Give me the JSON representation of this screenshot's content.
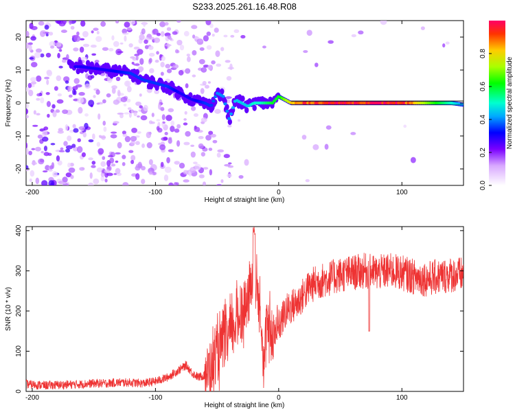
{
  "figure": {
    "title": "S233.2025.261.16.48.R08"
  },
  "chart_data": [
    {
      "type": "heatmap",
      "xlabel": "Height of straight line (km)",
      "ylabel": "Frequency (Hz)",
      "xlim": [
        -205,
        150
      ],
      "ylim": [
        -25,
        25
      ],
      "xticks": [
        -200,
        -100,
        0,
        100
      ],
      "yticks": [
        -20,
        -10,
        0,
        10,
        20
      ],
      "colorbar": {
        "label": "Normalized spectral amplitude",
        "range": [
          0,
          1
        ],
        "ticks": [
          "0.0",
          "0.2",
          "0.4",
          "0.6",
          "0.8"
        ]
      },
      "ridge": {
        "x": [
          -160,
          -140,
          -120,
          -110,
          -100,
          -90,
          -80,
          -70,
          -60,
          -55,
          -50,
          -45,
          -40,
          -35,
          -30,
          -25,
          -20,
          -15,
          -10,
          -5,
          0,
          5,
          10,
          20,
          40,
          60,
          80,
          100,
          120,
          140,
          150
        ],
        "y": [
          11,
          10,
          9,
          7,
          6,
          5,
          3,
          1,
          0,
          -1,
          3,
          2,
          -5,
          1,
          0,
          -1,
          0,
          0,
          0,
          0,
          2,
          1,
          0,
          0,
          0,
          0,
          0,
          0,
          0,
          0,
          -0.5
        ],
        "amplitude": [
          0.3,
          0.3,
          0.35,
          0.35,
          0.35,
          0.35,
          0.3,
          0.3,
          0.35,
          0.35,
          0.4,
          0.4,
          0.4,
          0.45,
          0.45,
          0.45,
          0.5,
          0.5,
          0.55,
          0.6,
          0.6,
          0.7,
          0.8,
          0.9,
          0.95,
          0.95,
          0.95,
          0.95,
          0.7,
          0.5,
          0.4
        ]
      }
    },
    {
      "type": "line",
      "xlabel": "Height of straight line (km)",
      "ylabel": "SNR (10 * v/v)",
      "xlim": [
        -205,
        150
      ],
      "ylim": [
        0,
        410
      ],
      "xticks": [
        -200,
        -100,
        0,
        100
      ],
      "yticks": [
        0,
        100,
        200,
        300,
        400
      ],
      "series": [
        {
          "name": "SNR",
          "color": "#ee3333",
          "x": [
            -205,
            -190,
            -180,
            -170,
            -160,
            -150,
            -140,
            -130,
            -120,
            -110,
            -100,
            -95,
            -90,
            -85,
            -80,
            -75,
            -70,
            -65,
            -60,
            -55,
            -50,
            -45,
            -40,
            -35,
            -30,
            -25,
            -22,
            -20,
            -18,
            -15,
            -12,
            -10,
            -5,
            0,
            5,
            10,
            15,
            20,
            25,
            30,
            40,
            50,
            60,
            70,
            80,
            90,
            100,
            110,
            120,
            130,
            140,
            150
          ],
          "y": [
            18,
            15,
            16,
            17,
            18,
            20,
            20,
            22,
            22,
            20,
            25,
            30,
            35,
            45,
            55,
            65,
            45,
            35,
            40,
            60,
            90,
            120,
            140,
            170,
            200,
            220,
            260,
            400,
            240,
            240,
            50,
            160,
            140,
            160,
            195,
            210,
            220,
            240,
            260,
            270,
            280,
            290,
            295,
            300,
            295,
            300,
            295,
            285,
            280,
            285,
            290,
            290
          ]
        }
      ]
    }
  ]
}
